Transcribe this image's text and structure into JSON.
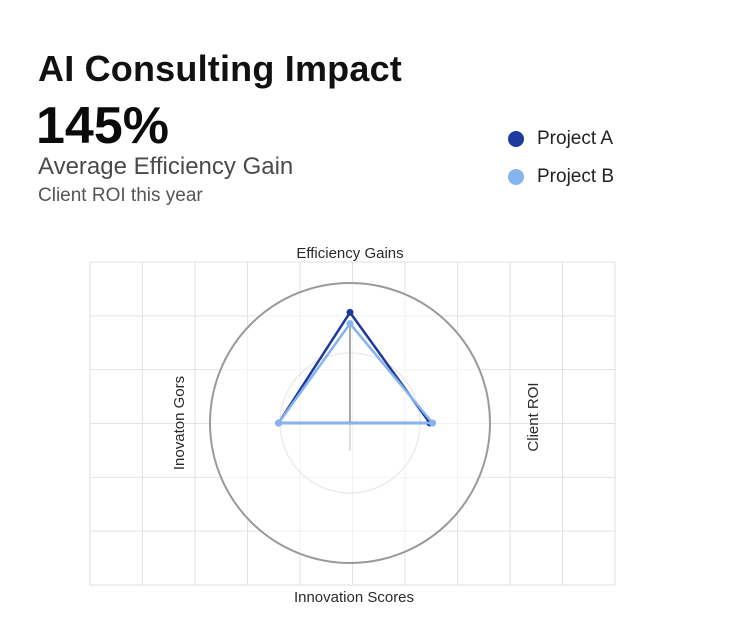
{
  "header": {
    "title": "AI Consulting Impact",
    "kpi_value": "145%",
    "kpi_label": "Average Efficiency Gain",
    "kpi_sub": "Client ROI this year"
  },
  "colors": {
    "project_a": "#1f3a9e",
    "project_b": "#86b4ee",
    "grid": "#e2e2e2",
    "outer_ring": "#9a9a9a",
    "inner_ring": "#cfcfcf",
    "axis": "#bdbdbd"
  },
  "chart_data": {
    "type": "radar",
    "title": "AI Consulting Impact",
    "axes": [
      "Efficiency Gains",
      "Client ROI",
      "Innovation Scores",
      "Inovaton Gors"
    ],
    "range": [
      0,
      100
    ],
    "rings": [
      50,
      100
    ],
    "grid": true,
    "legend_position": "top-right",
    "series": [
      {
        "name": "Project A",
        "values": [
          79,
          57,
          0,
          51
        ]
      },
      {
        "name": "Project B",
        "values": [
          71,
          59,
          0,
          51
        ]
      }
    ]
  }
}
